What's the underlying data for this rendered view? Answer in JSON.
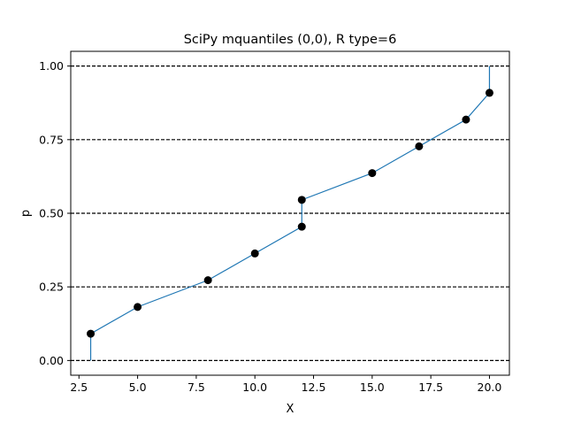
{
  "chart_data": {
    "type": "line",
    "title": "SciPy mquantiles (0,0), R type=6",
    "xlabel": "X",
    "ylabel": "p",
    "xlim": [
      2.15,
      20.85
    ],
    "ylim": [
      -0.05,
      1.05
    ],
    "xticks": [
      2.5,
      5.0,
      7.5,
      10.0,
      12.5,
      15.0,
      17.5,
      20.0
    ],
    "xtick_labels": [
      "2.5",
      "5.0",
      "7.5",
      "10.0",
      "12.5",
      "15.0",
      "17.5",
      "20.0"
    ],
    "yticks": [
      0.0,
      0.25,
      0.5,
      0.75,
      1.0
    ],
    "ytick_labels": [
      "0.00",
      "0.25",
      "0.50",
      "0.75",
      "1.00"
    ],
    "hlines": [
      0.0,
      0.25,
      0.5,
      0.75,
      1.0
    ],
    "hline_style": "dashed",
    "line": {
      "color": "#1f77b4",
      "x": [
        3,
        3,
        5,
        8,
        10,
        12,
        12,
        15,
        17,
        19,
        20,
        20
      ],
      "y": [
        0.0,
        0.0909,
        0.1818,
        0.2727,
        0.3636,
        0.4545,
        0.5455,
        0.6364,
        0.7273,
        0.8182,
        0.9091,
        1.0
      ]
    },
    "points": {
      "color": "#000000",
      "x": [
        3,
        5,
        8,
        10,
        12,
        12,
        15,
        17,
        19,
        20
      ],
      "y": [
        0.0909,
        0.1818,
        0.2727,
        0.3636,
        0.4545,
        0.5455,
        0.6364,
        0.7273,
        0.8182,
        0.9091
      ]
    }
  }
}
